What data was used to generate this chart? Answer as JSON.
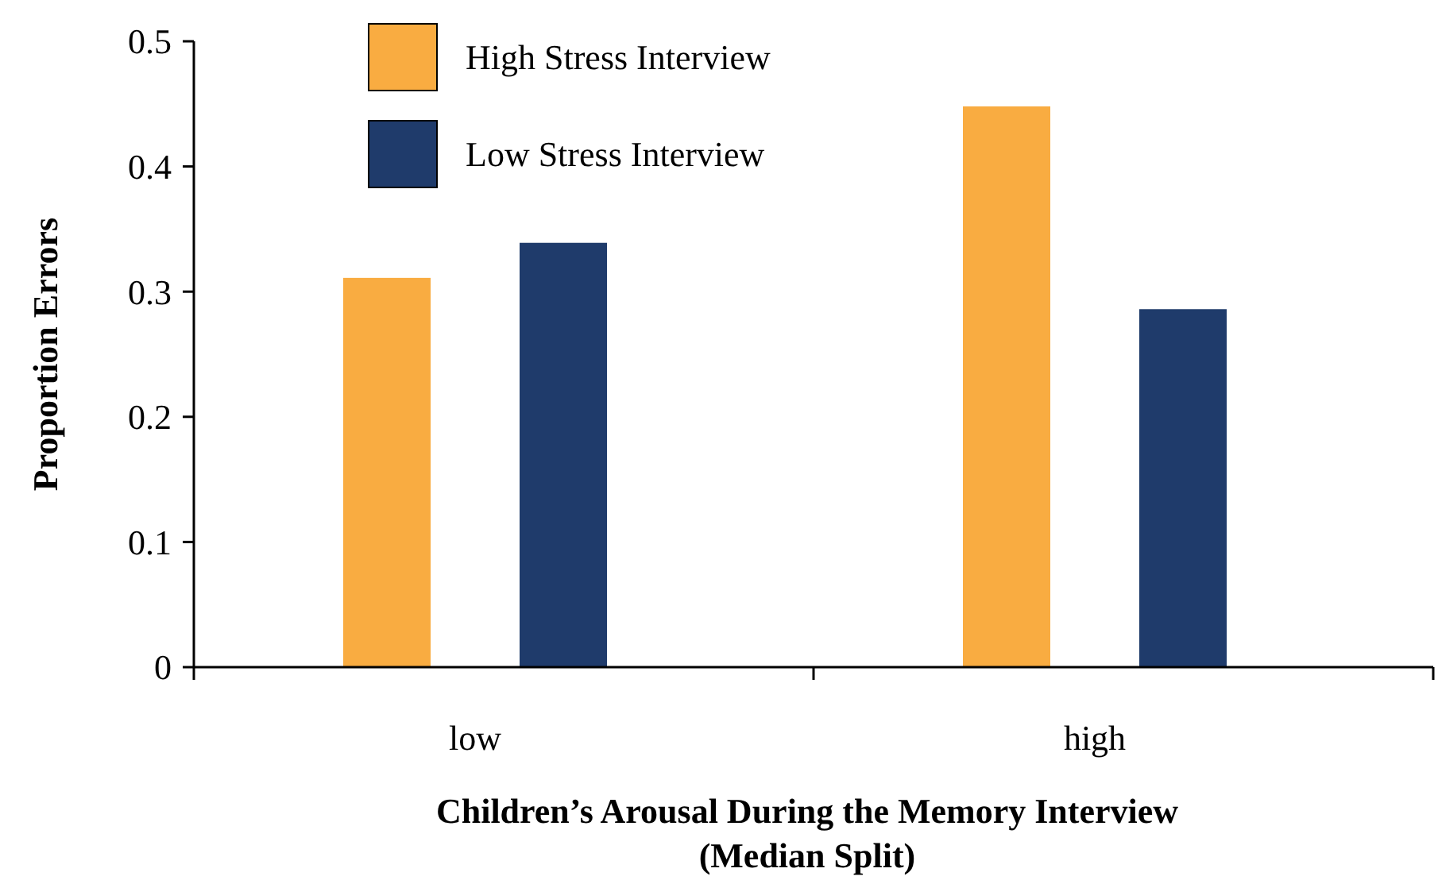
{
  "chart_data": {
    "type": "bar",
    "xlabel": "Children’s Arousal During the Memory Interview\n(Median Split)",
    "ylabel": "Proportion Errors",
    "categories": [
      "low",
      "high"
    ],
    "series": [
      {
        "name": "High Stress Interview",
        "color": "#f9ac41",
        "values": [
          0.311,
          0.448
        ]
      },
      {
        "name": "Low Stress Interview",
        "color": "#1f3b6b",
        "values": [
          0.339,
          0.286
        ]
      }
    ],
    "ylim": [
      0,
      0.5
    ],
    "yticks": [
      0,
      0.1,
      0.2,
      0.3,
      0.4,
      0.5
    ],
    "grid": false,
    "legend": "top left"
  }
}
